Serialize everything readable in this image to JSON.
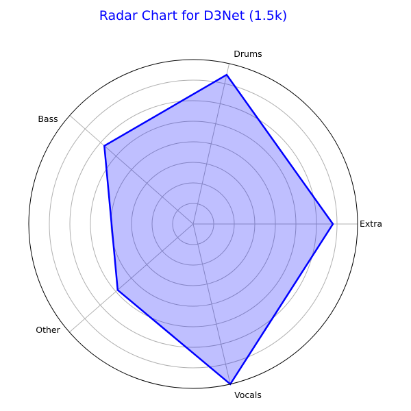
{
  "chart_data": {
    "type": "radar",
    "title": "Radar Chart for D3Net (1.5k)",
    "categories": [
      "Extra",
      "Drums",
      "Bass",
      "Other",
      "Vocals"
    ],
    "series": [
      {
        "values": [
          0.85,
          0.93,
          0.72,
          0.61,
          1.0
        ]
      }
    ],
    "rlim": [
      0,
      1.0
    ],
    "grid": true,
    "colors": {
      "title": "#0000ff",
      "series": "#0000ff",
      "fill": "#0000ff",
      "grid": "#b0b0b0",
      "frame": "#000000"
    }
  }
}
